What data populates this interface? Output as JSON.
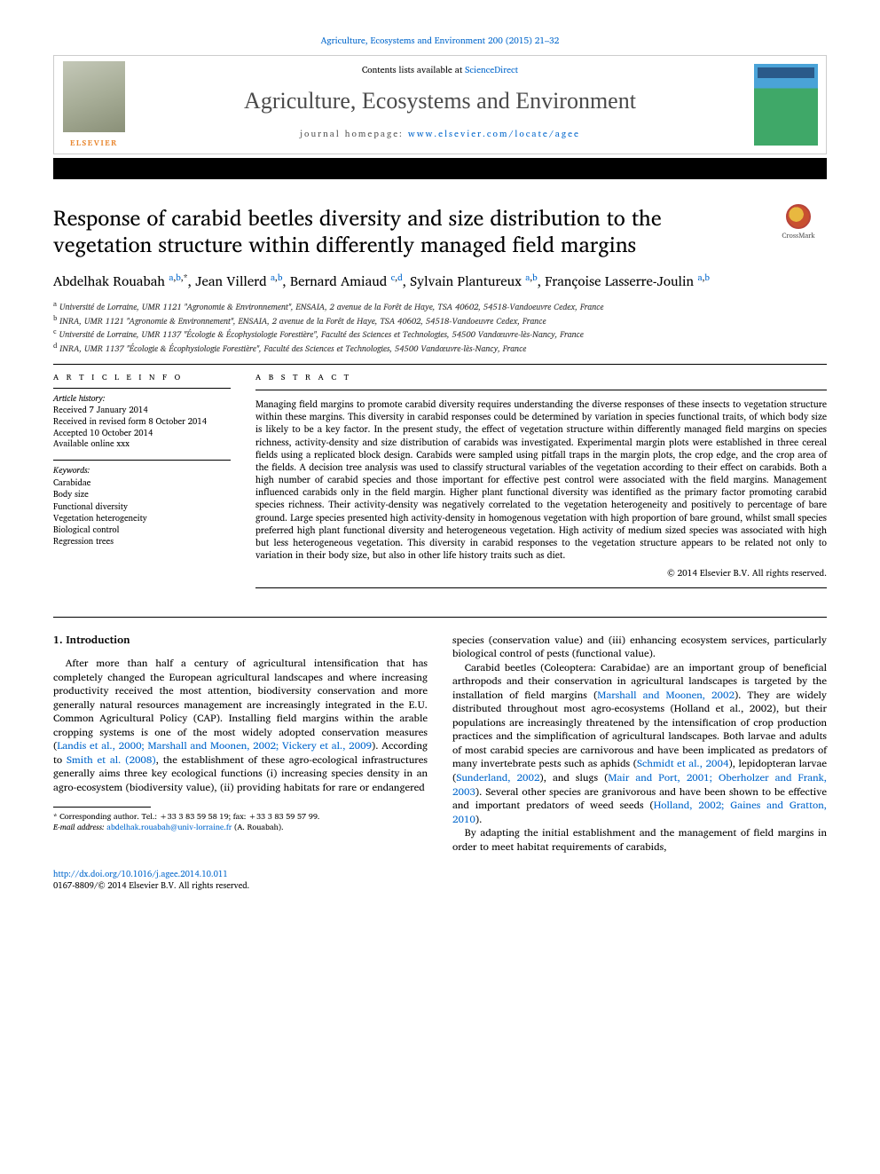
{
  "header": {
    "top_link": "Agriculture, Ecosystems and Environment 200 (2015) 21–32",
    "contents_line_prefix": "Contents lists available at ",
    "contents_link": "ScienceDirect",
    "journal_name": "Agriculture, Ecosystems and Environment",
    "homepage_prefix": "journal homepage: ",
    "homepage_url": "www.elsevier.com/locate/agee",
    "elsevier": "ELSEVIER"
  },
  "crossmark": "CrossMark",
  "title": "Response of carabid beetles diversity and size distribution to the vegetation structure within differently managed field margins",
  "authors_html": "Abdelhak Rouabah <sup><a>a</a>,<a>b</a>,*</sup>, Jean Villerd <sup><a>a</a>,<a>b</a></sup>, Bernard Amiaud <sup><a>c</a>,<a>d</a></sup>, Sylvain Plantureux <sup><a>a</a>,<a>b</a></sup>, Françoise Lasserre-Joulin <sup><a>a</a>,<a>b</a></sup>",
  "affiliations": [
    "a Université de Lorraine, UMR 1121 \"Agronomie & Environnement\", ENSAIA, 2 avenue de la Forêt de Haye, TSA 40602, 54518-Vandoeuvre Cedex, France",
    "b INRA, UMR 1121 \"Agronomie & Environnement\", ENSAIA, 2 avenue de la Forêt de Haye, TSA 40602, 54518-Vandoeuvre Cedex, France",
    "c Université de Lorraine, UMR 1137 \"Écologie & Écophysiologie Forestière\", Faculté des Sciences et Technologies, 54500 Vandœuvre-lès-Nancy, France",
    "d INRA, UMR 1137 \"Écologie & Écophysiologie Forestière\", Faculté des Sciences et Technologies, 54500 Vandœuvre-lès-Nancy, France"
  ],
  "info": {
    "heading": "A R T I C L E  I N F O",
    "history_label": "Article history:",
    "history": [
      "Received 7 January 2014",
      "Received in revised form 8 October 2014",
      "Accepted 10 October 2014",
      "Available online xxx"
    ],
    "keywords_label": "Keywords:",
    "keywords": [
      "Carabidae",
      "Body size",
      "Functional diversity",
      "Vegetation heterogeneity",
      "Biological control",
      "Regression trees"
    ]
  },
  "abstract": {
    "heading": "A B S T R A C T",
    "text": "Managing field margins to promote carabid diversity requires understanding the diverse responses of these insects to vegetation structure within these margins. This diversity in carabid responses could be determined by variation in species functional traits, of which body size is likely to be a key factor. In the present study, the effect of vegetation structure within differently managed field margins on species richness, activity-density and size distribution of carabids was investigated. Experimental margin plots were established in three cereal fields using a replicated block design. Carabids were sampled using pitfall traps in the margin plots, the crop edge, and the crop area of the fields. A decision tree analysis was used to classify structural variables of the vegetation according to their effect on carabids. Both a high number of carabid species and those important for effective pest control were associated with the field margins. Management influenced carabids only in the field margin. Higher plant functional diversity was identified as the primary factor promoting carabid species richness. Their activity-density was negatively correlated to the vegetation heterogeneity and positively to percentage of bare ground. Large species presented high activity-density in homogenous vegetation with high proportion of bare ground, whilst small species preferred high plant functional diversity and heterogeneous vegetation. High activity of medium sized species was associated with high but less heterogeneous vegetation. This diversity in carabid responses to the vegetation structure appears to be related not only to variation in their body size, but also in other life history traits such as diet.",
    "copyright": "© 2014 Elsevier B.V. All rights reserved."
  },
  "body": {
    "section_heading": "1. Introduction",
    "col1_p1_pre": "After more than half a century of agricultural intensification that has completely changed the European agricultural landscapes and where increasing productivity received the most attention, biodiversity conservation and more generally natural resources management are increasingly integrated in the E.U. Common Agricultural Policy (CAP). Installing field margins within the arable cropping systems is one of the most widely adopted conservation measures (",
    "col1_link1": "Landis et al., 2000; Marshall and Moonen, 2002; Vickery et al., 2009",
    "col1_p1_mid1": "). According to ",
    "col1_link2": "Smith et al. (2008)",
    "col1_p1_post": ", the establishment of these agro-ecological infrastructures generally aims three key ecological functions (i) increasing species density in an agro-ecosystem (biodiversity value), (ii) providing habitats for rare or endangered",
    "col2_p1": "species (conservation value) and (iii) enhancing ecosystem services, particularly biological control of pests (functional value).",
    "col2_p2_pre": "Carabid beetles (Coleoptera: Carabidae) are an important group of beneficial arthropods and their conservation in agricultural landscapes is targeted by the installation of field margins (",
    "col2_link1": "Marshall and Moonen, 2002",
    "col2_p2_mid1": "). They are widely distributed throughout most agro-ecosystems (Holland et al., 2002), but their populations are increasingly threatened by the intensification of crop production practices and the simplification of agricultural landscapes. Both larvae and adults of most carabid species are carnivorous and have been implicated as predators of many invertebrate pests such as aphids (",
    "col2_link2": "Schmidt et al., 2004",
    "col2_p2_mid2": "), lepidopteran larvae (",
    "col2_link3": "Sunderland, 2002",
    "col2_p2_mid3": "), and slugs (",
    "col2_link4": "Mair and Port, 2001; Oberholzer and Frank, 2003",
    "col2_p2_mid4": "). Several other species are granivorous and have been shown to be effective and important predators of weed seeds (",
    "col2_link5": "Holland, 2002; Gaines and Gratton, 2010",
    "col2_p2_post": ").",
    "col2_p3": "By adapting the initial establishment and the management of field margins in order to meet habitat requirements of carabids,"
  },
  "footnote": {
    "star": "* Corresponding author. Tel.: +33 3 83 59 58 19; fax: +33 3 83 59 57 99.",
    "email_label": "E-mail address: ",
    "email": "abdelhak.rouabah@univ-lorraine.fr",
    "email_tail": " (A. Rouabah)."
  },
  "doi": {
    "url": "http://dx.doi.org/10.1016/j.agee.2014.10.011",
    "line2": "0167-8809/© 2014 Elsevier B.V. All rights reserved."
  },
  "colors": {
    "link": "#0066cc",
    "elsevier_orange": "#e8862e",
    "text": "#000000"
  }
}
